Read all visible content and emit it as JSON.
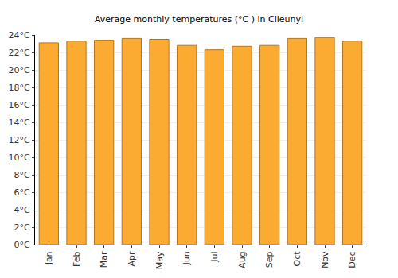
{
  "chart_data": {
    "type": "bar",
    "title": "Average monthly temperatures (°C ) in Cileunyi",
    "categories": [
      "Jan",
      "Feb",
      "Mar",
      "Apr",
      "May",
      "Jun",
      "Jul",
      "Aug",
      "Sep",
      "Oct",
      "Nov",
      "Dec"
    ],
    "values": [
      23.1,
      23.3,
      23.4,
      23.6,
      23.5,
      22.8,
      22.3,
      22.7,
      22.8,
      23.6,
      23.7,
      23.3
    ],
    "color": "#fbaa32",
    "ylim": [
      0,
      24
    ],
    "yticks": [
      {
        "value": 0,
        "label": "0°C"
      },
      {
        "value": 2,
        "label": "2°C"
      },
      {
        "value": 4,
        "label": "4°C"
      },
      {
        "value": 6,
        "label": "6°C"
      },
      {
        "value": 8,
        "label": "8°C"
      },
      {
        "value": 10,
        "label": "10°C"
      },
      {
        "value": 12,
        "label": "12°C"
      },
      {
        "value": 14,
        "label": "14°C"
      },
      {
        "value": 16,
        "label": "16°C"
      },
      {
        "value": 18,
        "label": "18°C"
      },
      {
        "value": 20,
        "label": "20°C"
      },
      {
        "value": 22,
        "label": "22°C"
      },
      {
        "value": 24,
        "label": "24°C"
      }
    ],
    "grid": true
  }
}
